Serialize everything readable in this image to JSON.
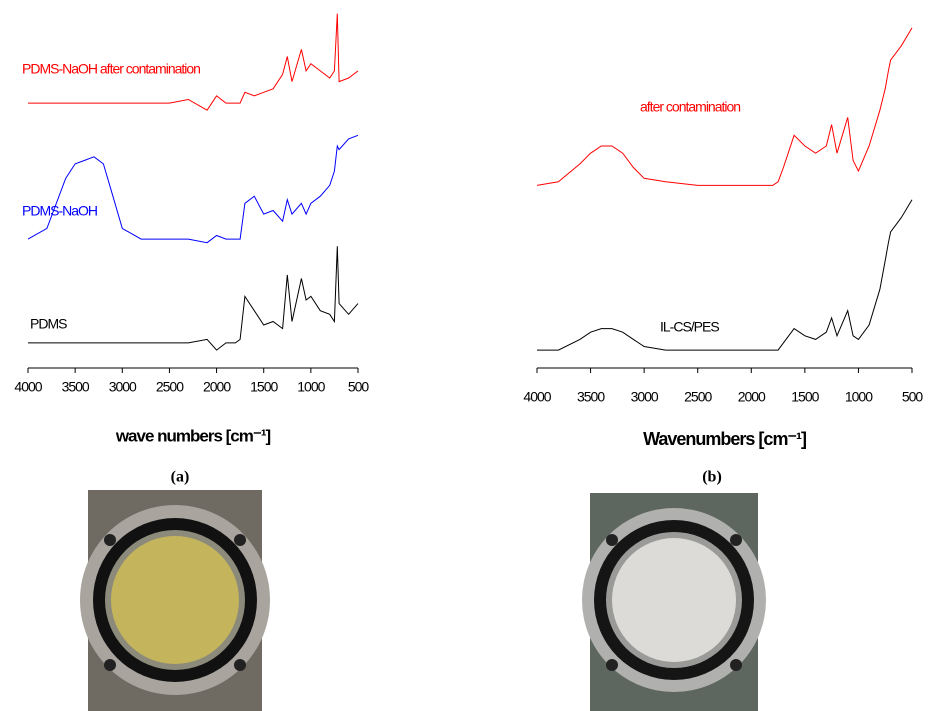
{
  "chart_data": [
    {
      "type": "line",
      "caption": "(a)",
      "xlabel": "wave numbers [cm⁻¹]",
      "x": [
        4000,
        3800,
        3600,
        3500,
        3400,
        3300,
        3200,
        3100,
        3000,
        2800,
        2500,
        2300,
        2100,
        2000,
        1900,
        1800,
        1750,
        1700,
        1600,
        1500,
        1400,
        1300,
        1250,
        1200,
        1100,
        1050,
        1000,
        900,
        800,
        750,
        720,
        700,
        600,
        500
      ],
      "xlim": [
        4000,
        500
      ],
      "xticks": [
        4000,
        3500,
        3000,
        2500,
        2000,
        1500,
        1000,
        500
      ],
      "ylim": [
        0,
        100
      ],
      "series": [
        {
          "name": "PDMS-NaOH after contamination",
          "color": "#ff0000",
          "values": [
            74,
            74,
            74,
            74,
            74,
            74,
            74,
            74,
            74,
            74,
            74,
            75,
            72,
            76,
            74,
            74,
            74,
            77,
            76,
            77,
            78,
            82,
            87,
            80,
            89,
            83,
            85,
            83,
            81,
            83,
            99,
            80,
            81,
            83
          ]
        },
        {
          "name": "PDMS-NaOH",
          "color": "#0000ff",
          "values": [
            36,
            39,
            53,
            57,
            58,
            59,
            57,
            48,
            39,
            36,
            36,
            36,
            35,
            37,
            36,
            36,
            36,
            46,
            48,
            43,
            44,
            41,
            47,
            43,
            46,
            43,
            46,
            48,
            51,
            55,
            62,
            61,
            64,
            65
          ]
        },
        {
          "name": "PDMS",
          "color": "#000000",
          "values": [
            7,
            7,
            7,
            7,
            7,
            7,
            7,
            7,
            7,
            7,
            7,
            7,
            8,
            5,
            7,
            7,
            8,
            20,
            16,
            12,
            13,
            11,
            26,
            13,
            25,
            19,
            20,
            16,
            15,
            13,
            34,
            18,
            15,
            18
          ]
        }
      ]
    },
    {
      "type": "line",
      "caption": "(b)",
      "xlabel": "Wavenumbers [cm⁻¹]",
      "x": [
        4000,
        3800,
        3600,
        3500,
        3400,
        3300,
        3200,
        3100,
        3000,
        2800,
        2500,
        2300,
        2100,
        2000,
        1900,
        1800,
        1750,
        1700,
        1600,
        1500,
        1400,
        1300,
        1250,
        1200,
        1100,
        1050,
        1000,
        900,
        800,
        750,
        720,
        700,
        600,
        500
      ],
      "xlim": [
        4000,
        500
      ],
      "xticks": [
        4000,
        3500,
        3000,
        2500,
        2000,
        1500,
        1000,
        500
      ],
      "ylim": [
        0,
        100
      ],
      "series": [
        {
          "name": "after contamination",
          "color": "#ff0000",
          "values": [
            51,
            52,
            57,
            60,
            62,
            62,
            60,
            56,
            53,
            52,
            51,
            51,
            51,
            51,
            51,
            51,
            52,
            56,
            65,
            62,
            60,
            62,
            68,
            60,
            70,
            58,
            55,
            62,
            72,
            78,
            83,
            86,
            90,
            95
          ]
        },
        {
          "name": "IL-CS/PES",
          "color": "#000000",
          "values": [
            5,
            5,
            8,
            10,
            11,
            11,
            10,
            8,
            6,
            5,
            5,
            5,
            5,
            5,
            5,
            5,
            5,
            7,
            11,
            9,
            8,
            10,
            14,
            9,
            16,
            9,
            8,
            12,
            22,
            30,
            35,
            38,
            42,
            47
          ]
        }
      ]
    }
  ]
}
